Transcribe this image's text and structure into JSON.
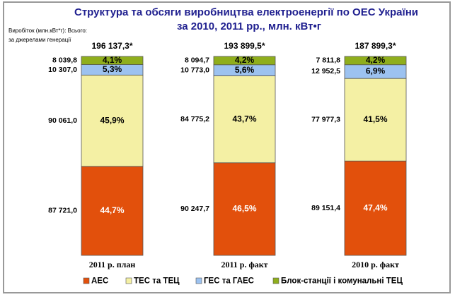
{
  "chart_data": {
    "type": "stacked_bar_100",
    "title": "Структура та обсяги виробництва електроенергії по ОЕС України",
    "subtitle": "за  2010, 2011 рр., млн. кВт•г",
    "y_label": "Виробіток (млн.кВт*г): Всього:",
    "y_label_2": "за джерелами генерації",
    "categories": [
      "2011 р. план",
      "2011 р. факт",
      "2010 р. факт"
    ],
    "totals": [
      196137.3,
      193899.5,
      187899.3
    ],
    "total_labels": [
      "196 137,3*",
      "193 899,5*",
      "187 899,3*"
    ],
    "series": [
      {
        "name": "АЕС",
        "color": "#e2500c",
        "values": [
          87721.0,
          90247.7,
          89151.4
        ],
        "value_labels": [
          "87 721,0",
          "90 247,7",
          "89 151,4"
        ],
        "percents": [
          44.7,
          46.5,
          47.4
        ],
        "percent_labels": [
          "44,7%",
          "46,5%",
          "47,4%"
        ]
      },
      {
        "name": "ТЕС та ТЕЦ",
        "color": "#f4f0a4",
        "values": [
          90061.0,
          84775.2,
          77977.3
        ],
        "value_labels": [
          "90 061,0",
          "84 775,2",
          "77 977,3"
        ],
        "percents": [
          45.9,
          43.7,
          41.5
        ],
        "percent_labels": [
          "45,9%",
          "43,7%",
          "41,5%"
        ]
      },
      {
        "name": "ГЕС та ГАЕС",
        "color": "#9cc2f0",
        "values": [
          10307.0,
          10773.0,
          12952.5
        ],
        "value_labels": [
          "10 307,0",
          "10 773,0",
          "12 952,5"
        ],
        "percents": [
          5.3,
          5.6,
          6.9
        ],
        "percent_labels": [
          "5,3%",
          "5,6%",
          "6,9%"
        ]
      },
      {
        "name": "Блок-станції і комунальні ТЕЦ",
        "color": "#8fae1c",
        "values": [
          8039.8,
          8094.7,
          7811.8
        ],
        "value_labels": [
          "8 039,8",
          "8 094,7",
          "7 811,8"
        ],
        "percents": [
          4.1,
          4.2,
          4.2
        ],
        "percent_labels": [
          "4,1%",
          "4,2%",
          "4,2%"
        ]
      }
    ]
  }
}
